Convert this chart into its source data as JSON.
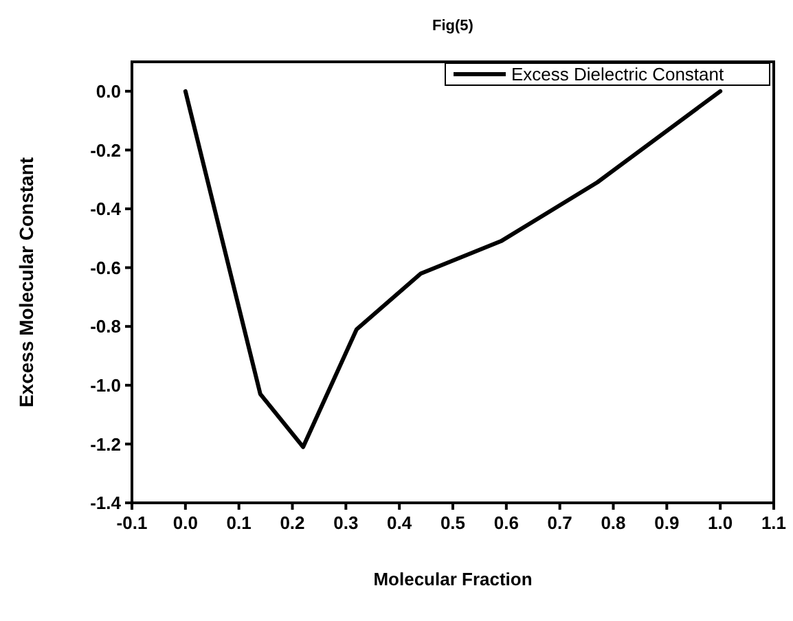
{
  "chart_data": {
    "type": "line",
    "title": "Fig(5)",
    "xlabel": "Molecular Fraction",
    "ylabel": "Excess Molecular Constant",
    "xlim": [
      -0.1,
      1.1
    ],
    "xticks": [
      -0.1,
      {
        "value": 0,
        "label": "0.0"
      },
      0.1,
      0.2,
      0.3,
      0.4,
      0.5,
      0.6,
      0.7,
      0.8,
      0.9,
      {
        "value": 1,
        "label": "1.0"
      },
      1.1
    ],
    "ylim": [
      -1.4,
      0.1
    ],
    "yticks": [
      {
        "value": 0,
        "label": "0.0"
      },
      -0.2,
      -0.4,
      -0.6,
      -0.8,
      {
        "value": -1,
        "label": "-1.0"
      },
      -1.2,
      -1.4
    ],
    "legend": "top right",
    "grid": false,
    "marker": "none",
    "line_style": "solid",
    "series": [
      {
        "name": "Excess Dielectric Constant",
        "color": "#000000",
        "x": [
          0,
          0.14,
          0.22,
          0.32,
          0.44,
          0.59,
          0.77,
          1.0
        ],
        "values": [
          0,
          -1.03,
          -1.21,
          -0.81,
          -0.62,
          -0.51,
          -0.31,
          0
        ]
      }
    ]
  }
}
